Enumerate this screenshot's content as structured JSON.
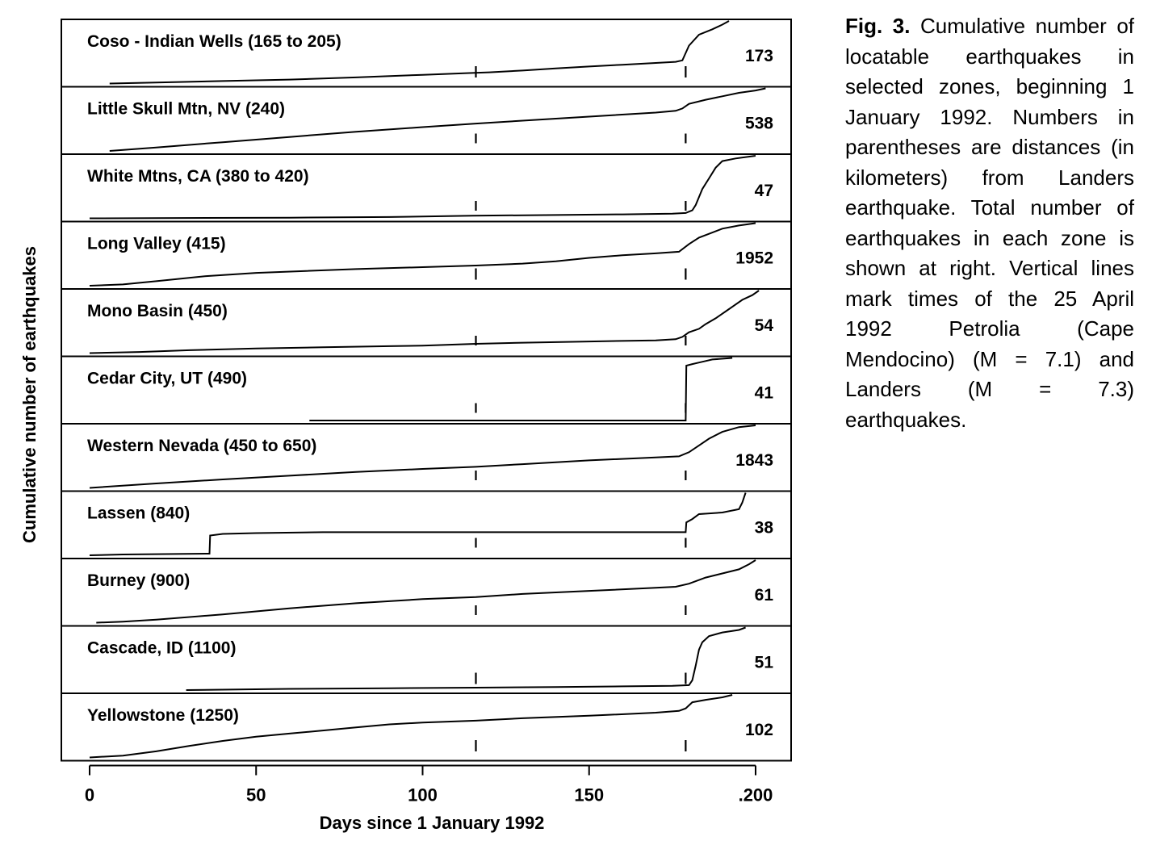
{
  "chart_data": {
    "type": "line",
    "xlabel": "Days since 1 January 1992",
    "ylabel": "Cumulative number of earthquakes",
    "xlim": [
      0,
      210
    ],
    "x_ticks": [
      {
        "value": 0,
        "label": "0"
      },
      {
        "value": 50,
        "label": "50"
      },
      {
        "value": 100,
        "label": "100"
      },
      {
        "value": 150,
        "label": "150"
      },
      {
        "value": 200,
        "label": ".200"
      }
    ],
    "event_days": [
      116,
      179
    ],
    "grid": false,
    "panels": [
      {
        "title": "Coso - Indian Wells  (165 to 205)",
        "total": "173",
        "points": [
          [
            6,
            0
          ],
          [
            20,
            3
          ],
          [
            40,
            7
          ],
          [
            60,
            11
          ],
          [
            80,
            17
          ],
          [
            100,
            24
          ],
          [
            114,
            29
          ],
          [
            120,
            31
          ],
          [
            130,
            36
          ],
          [
            140,
            42
          ],
          [
            150,
            47
          ],
          [
            160,
            52
          ],
          [
            170,
            57
          ],
          [
            176,
            60
          ],
          [
            178,
            64
          ],
          [
            180,
            105
          ],
          [
            183,
            135
          ],
          [
            187,
            150
          ],
          [
            190,
            163
          ],
          [
            192,
            173
          ]
        ]
      },
      {
        "title": "Little Skull Mtn, NV (240)",
        "total": "538",
        "points": [
          [
            6,
            0
          ],
          [
            20,
            30
          ],
          [
            40,
            75
          ],
          [
            60,
            120
          ],
          [
            80,
            165
          ],
          [
            100,
            205
          ],
          [
            116,
            235
          ],
          [
            130,
            260
          ],
          [
            150,
            295
          ],
          [
            170,
            330
          ],
          [
            176,
            345
          ],
          [
            178,
            365
          ],
          [
            180,
            405
          ],
          [
            185,
            440
          ],
          [
            190,
            470
          ],
          [
            195,
            500
          ],
          [
            200,
            520
          ],
          [
            203,
            538
          ]
        ]
      },
      {
        "title": "White Mtns, CA (380 to 420)",
        "total": "47",
        "points": [
          [
            0,
            0
          ],
          [
            60,
            0.5
          ],
          [
            90,
            1
          ],
          [
            115,
            2
          ],
          [
            140,
            2.5
          ],
          [
            160,
            3
          ],
          [
            175,
            3.5
          ],
          [
            179,
            4
          ],
          [
            181,
            6
          ],
          [
            182,
            10
          ],
          [
            183,
            16
          ],
          [
            184,
            22
          ],
          [
            186,
            30
          ],
          [
            188,
            38
          ],
          [
            190,
            43
          ],
          [
            194,
            45
          ],
          [
            200,
            47
          ]
        ]
      },
      {
        "title": "Long Valley (415)",
        "total": "1952",
        "points": [
          [
            0,
            0
          ],
          [
            10,
            40
          ],
          [
            20,
            140
          ],
          [
            35,
            300
          ],
          [
            50,
            400
          ],
          [
            65,
            460
          ],
          [
            80,
            520
          ],
          [
            100,
            580
          ],
          [
            116,
            630
          ],
          [
            130,
            690
          ],
          [
            140,
            760
          ],
          [
            150,
            870
          ],
          [
            160,
            950
          ],
          [
            170,
            1010
          ],
          [
            177,
            1060
          ],
          [
            180,
            1300
          ],
          [
            183,
            1500
          ],
          [
            186,
            1620
          ],
          [
            190,
            1780
          ],
          [
            195,
            1880
          ],
          [
            200,
            1952
          ]
        ]
      },
      {
        "title": "Mono Basin (450)",
        "total": "54",
        "points": [
          [
            0,
            0
          ],
          [
            15,
            1
          ],
          [
            30,
            2.5
          ],
          [
            50,
            4
          ],
          [
            70,
            5
          ],
          [
            90,
            6
          ],
          [
            100,
            6.5
          ],
          [
            116,
            8
          ],
          [
            130,
            9
          ],
          [
            150,
            10
          ],
          [
            170,
            11
          ],
          [
            176,
            12
          ],
          [
            178,
            14
          ],
          [
            180,
            18
          ],
          [
            183,
            21
          ],
          [
            185,
            25
          ],
          [
            188,
            30
          ],
          [
            192,
            38
          ],
          [
            196,
            46
          ],
          [
            199,
            50
          ],
          [
            201,
            54
          ]
        ]
      },
      {
        "title": "Cedar City, UT (490)",
        "total": "41",
        "points": [
          [
            66,
            0
          ],
          [
            179,
            0
          ],
          [
            179.2,
            36
          ],
          [
            181,
            37
          ],
          [
            183,
            38
          ],
          [
            185,
            39
          ],
          [
            187,
            40
          ],
          [
            193,
            41
          ]
        ]
      },
      {
        "title": "Western Nevada  (450 to 650)",
        "total": "1843",
        "points": [
          [
            0,
            0
          ],
          [
            20,
            130
          ],
          [
            40,
            250
          ],
          [
            60,
            360
          ],
          [
            80,
            470
          ],
          [
            100,
            560
          ],
          [
            116,
            620
          ],
          [
            130,
            700
          ],
          [
            150,
            810
          ],
          [
            170,
            900
          ],
          [
            177,
            930
          ],
          [
            180,
            1050
          ],
          [
            183,
            1250
          ],
          [
            186,
            1450
          ],
          [
            190,
            1650
          ],
          [
            195,
            1790
          ],
          [
            200,
            1843
          ]
        ]
      },
      {
        "title": "Lassen (840)",
        "total": "38",
        "points": [
          [
            0,
            0
          ],
          [
            10,
            0.5
          ],
          [
            36,
            1
          ],
          [
            36.2,
            12
          ],
          [
            40,
            13
          ],
          [
            50,
            13.5
          ],
          [
            70,
            14
          ],
          [
            100,
            14
          ],
          [
            130,
            14
          ],
          [
            150,
            14
          ],
          [
            170,
            14
          ],
          [
            179,
            14
          ],
          [
            179.2,
            20
          ],
          [
            181,
            22
          ],
          [
            183,
            25
          ],
          [
            190,
            26
          ],
          [
            195,
            28
          ],
          [
            196,
            32
          ],
          [
            197,
            38
          ]
        ]
      },
      {
        "title": "Burney (900)",
        "total": "61",
        "points": [
          [
            2,
            0
          ],
          [
            10,
            1
          ],
          [
            20,
            3
          ],
          [
            40,
            8
          ],
          [
            60,
            14
          ],
          [
            80,
            19
          ],
          [
            100,
            23
          ],
          [
            116,
            25
          ],
          [
            130,
            28
          ],
          [
            150,
            31
          ],
          [
            170,
            34
          ],
          [
            176,
            35
          ],
          [
            180,
            38
          ],
          [
            185,
            44
          ],
          [
            190,
            48
          ],
          [
            195,
            52
          ],
          [
            198,
            57
          ],
          [
            200,
            61
          ]
        ]
      },
      {
        "title": "Cascade, ID (1100)",
        "total": "51",
        "points": [
          [
            29,
            0
          ],
          [
            60,
            1
          ],
          [
            90,
            1.5
          ],
          [
            116,
            2
          ],
          [
            140,
            2.5
          ],
          [
            160,
            3
          ],
          [
            175,
            3.5
          ],
          [
            180,
            4
          ],
          [
            181,
            8
          ],
          [
            182,
            20
          ],
          [
            183,
            33
          ],
          [
            184,
            39
          ],
          [
            186,
            44
          ],
          [
            190,
            47
          ],
          [
            195,
            49
          ],
          [
            197,
            51
          ]
        ]
      },
      {
        "title": "Yellowstone (1250)",
        "total": "102",
        "points": [
          [
            0,
            0
          ],
          [
            10,
            3
          ],
          [
            20,
            10
          ],
          [
            30,
            19
          ],
          [
            40,
            27
          ],
          [
            50,
            34
          ],
          [
            60,
            39
          ],
          [
            70,
            44
          ],
          [
            80,
            49
          ],
          [
            90,
            54
          ],
          [
            100,
            57
          ],
          [
            116,
            60
          ],
          [
            130,
            64
          ],
          [
            150,
            68
          ],
          [
            170,
            73
          ],
          [
            177,
            76
          ],
          [
            179,
            80
          ],
          [
            181,
            90
          ],
          [
            185,
            94
          ],
          [
            190,
            98
          ],
          [
            193,
            102
          ]
        ]
      }
    ]
  },
  "caption": {
    "label": "Fig. 3.",
    "text": "Cumulative number of locatable earthquakes in selected zones, beginning 1 January 1992. Numbers in parentheses are distances (in kilometers) from Landers earthquake. Total number of earthquakes in each zone is shown at right. Vertical lines mark times of the 25 April 1992 Petrolia (Cape Mendocino) (M = 7.1) and Landers (M = 7.3) earthquakes."
  }
}
